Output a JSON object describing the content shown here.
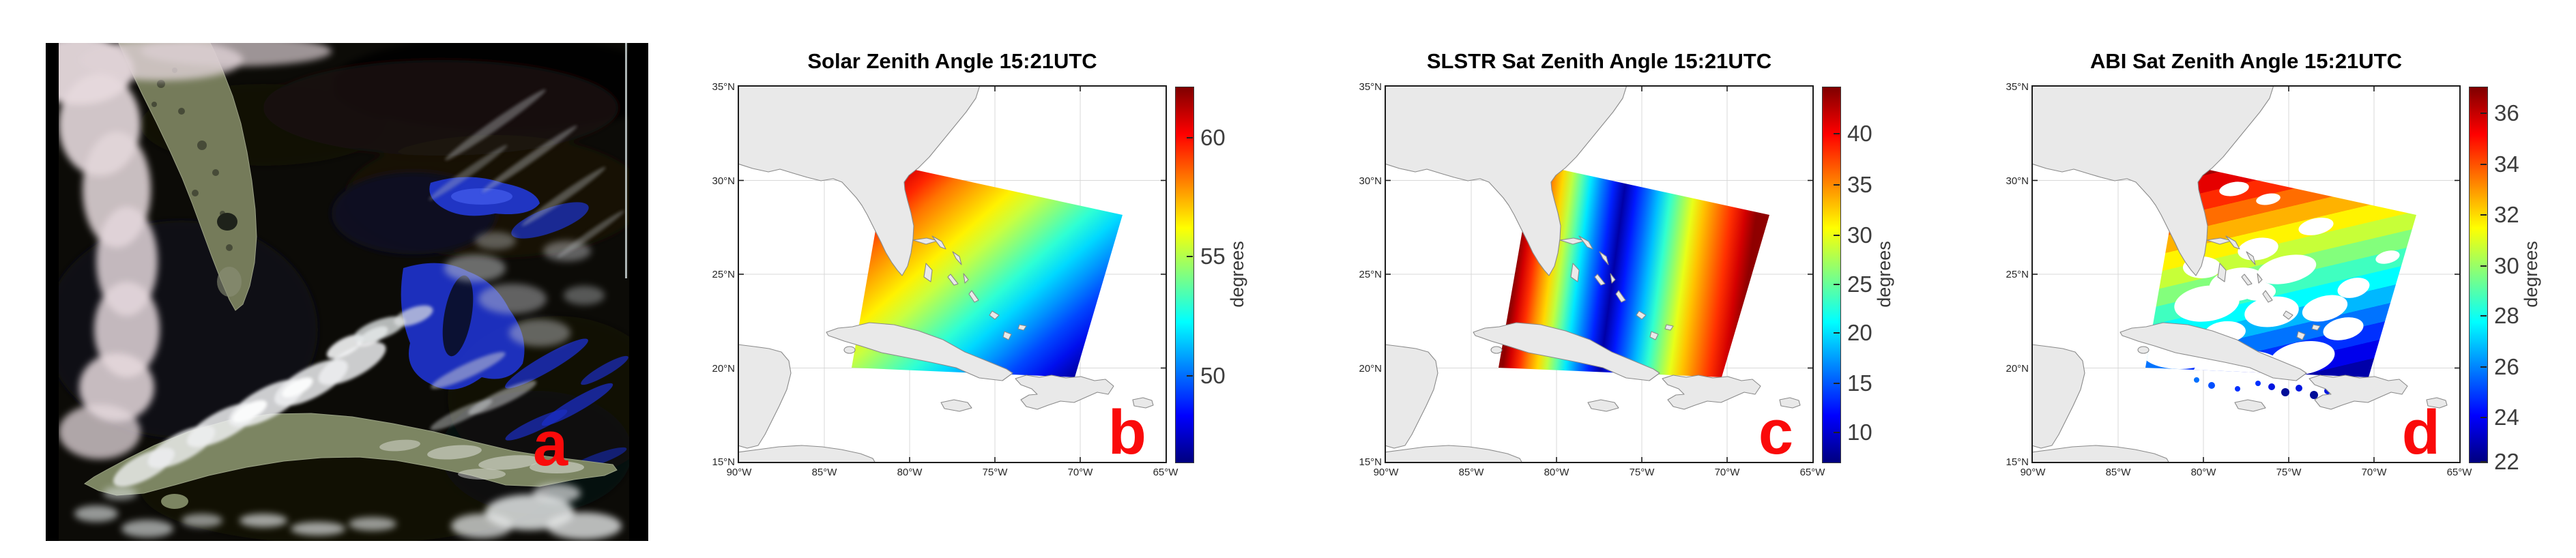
{
  "panel_a": {
    "letter": "a",
    "description": "True-color satellite image of Florida, the Bahama banks and Cuba with scattered clouds over dark ocean"
  },
  "shared_axes": {
    "lat_ticks": [
      "35°N",
      "30°N",
      "25°N",
      "20°N",
      "15°N"
    ],
    "lon_ticks": [
      "90°W",
      "85°W",
      "80°W",
      "75°W",
      "70°W",
      "65°W"
    ]
  },
  "map_panels": [
    {
      "id": "b",
      "title": "Solar Zenith Angle 15:21UTC",
      "letter": "b",
      "colorbar_unit": "degrees",
      "colorbar_ticks": [
        {
          "label": "60",
          "pos": 0.136
        },
        {
          "label": "55",
          "pos": 0.453
        },
        {
          "label": "50",
          "pos": 0.771
        }
      ]
    },
    {
      "id": "c",
      "title": "SLSTR Sat Zenith Angle 15:21UTC",
      "letter": "c",
      "colorbar_unit": "degrees",
      "colorbar_ticks": [
        {
          "label": "40",
          "pos": 0.125
        },
        {
          "label": "35",
          "pos": 0.262
        },
        {
          "label": "30",
          "pos": 0.396
        },
        {
          "label": "25",
          "pos": 0.527
        },
        {
          "label": "20",
          "pos": 0.657
        },
        {
          "label": "15",
          "pos": 0.791
        },
        {
          "label": "10",
          "pos": 0.922
        }
      ]
    },
    {
      "id": "d",
      "title": "ABI Sat Zenith Angle 15:21UTC",
      "letter": "d",
      "colorbar_unit": "degrees",
      "colorbar_ticks": [
        {
          "label": "36",
          "pos": 0.071
        },
        {
          "label": "34",
          "pos": 0.207
        },
        {
          "label": "32",
          "pos": 0.342
        },
        {
          "label": "30",
          "pos": 0.478
        },
        {
          "label": "28",
          "pos": 0.611
        },
        {
          "label": "26",
          "pos": 0.747
        },
        {
          "label": "24",
          "pos": 0.882
        },
        {
          "label": "22",
          "pos": 1.0
        }
      ]
    }
  ],
  "colors": {
    "annotation_red": "#fa0a0a",
    "land_fill": "#e9e9e9",
    "coastline": "#8a8a8a",
    "grid": "#d8d8d8",
    "axis": "#1c1c1c",
    "tick_label": "#262626",
    "colorbar_label": "#3d3d3d",
    "jet": [
      "#00007f",
      "#0000ff",
      "#00ffff",
      "#80ff80",
      "#ffff00",
      "#ff0000",
      "#7f0000"
    ]
  },
  "chart_data": [
    {
      "type": "image",
      "panel": "a",
      "annotation": "a",
      "description": "True-color geostationary satellite scene: olive-green Florida peninsula (top left), Cuba stretched across the lower half, bright blue Bahama banks east of Florida, pink-white cloud band along the left edge, scattered white clouds, near-black ocean; black vertical bars at left and right edges"
    },
    {
      "type": "heatmap",
      "panel": "b",
      "title": "Solar Zenith Angle 15:21UTC",
      "annotation": "b",
      "colormap": "jet",
      "units": "degrees",
      "colorbar_ticks": [
        60,
        55,
        50
      ],
      "colorbar_range": [
        46,
        62.3
      ],
      "field": "Solar zenith angle on a rotated square SLSTR swath: ~62 deg at the northwest swath corner decreasing smoothly along the NW-SE diagonal to ~46 deg at the southeast corner",
      "x_axis": {
        "ticks": [
          "90°W",
          "85°W",
          "80°W",
          "75°W",
          "70°W",
          "65°W"
        ],
        "range_deg_w": [
          90,
          65
        ]
      },
      "y_axis": {
        "ticks": [
          "35°N",
          "30°N",
          "25°N",
          "20°N",
          "15°N"
        ],
        "range_deg_n": [
          15,
          35
        ]
      },
      "grid": true,
      "basemap": "light gray land: SE United States with Florida, Cuba, Hispaniola, Jamaica, Puerto Rico, Yucatan, Bahamas"
    },
    {
      "type": "heatmap",
      "panel": "c",
      "title": "SLSTR Sat Zenith Angle 15:21UTC",
      "annotation": "c",
      "colormap": "jet",
      "units": "degrees",
      "colorbar_ticks": [
        40,
        35,
        30,
        25,
        20,
        15,
        10
      ],
      "colorbar_range": [
        6,
        45
      ],
      "field": "SLSTR satellite zenith angle across the same rotated swath: ~44 deg (dark red) at both across-track edges, decreasing to a ~7 deg minimum (dark blue) along the near-nadir line about 40% across the swath; stripes run along-track",
      "x_axis": {
        "ticks": [
          "90°W",
          "85°W",
          "80°W",
          "75°W",
          "70°W",
          "65°W"
        ],
        "range_deg_w": [
          90,
          65
        ]
      },
      "y_axis": {
        "ticks": [
          "35°N",
          "30°N",
          "25°N",
          "20°N",
          "15°N"
        ],
        "range_deg_n": [
          15,
          35
        ]
      },
      "grid": true
    },
    {
      "type": "heatmap",
      "panel": "d",
      "title": "ABI Sat Zenith Angle 15:21UTC",
      "annotation": "d",
      "colormap": "jet",
      "units": "degrees",
      "colorbar_ticks": [
        36,
        34,
        32,
        30,
        28,
        26,
        24,
        22
      ],
      "colorbar_range": [
        22,
        37
      ],
      "field": "ABI satellite zenith angle shown in ~1-degree discrete bands decreasing from ~37 deg (dark red, north) to ~22 deg (dark blue, south of Cuba); white gaps where pixels are cloud-masked",
      "x_axis": {
        "ticks": [
          "90°W",
          "85°W",
          "80°W",
          "75°W",
          "70°W",
          "65°W"
        ],
        "range_deg_w": [
          90,
          65
        ]
      },
      "y_axis": {
        "ticks": [
          "35°N",
          "30°N",
          "25°N",
          "20°N",
          "15°N"
        ],
        "range_deg_n": [
          15,
          35
        ]
      },
      "grid": true
    }
  ]
}
